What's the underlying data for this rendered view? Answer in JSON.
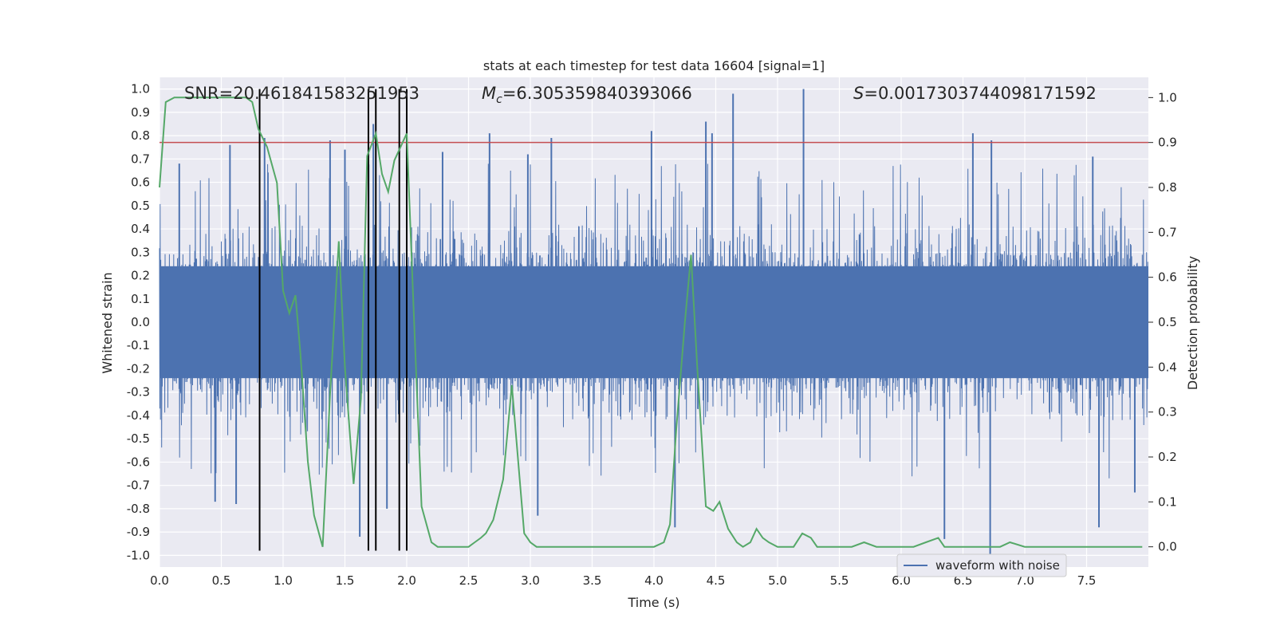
{
  "chart_data": {
    "type": "line",
    "title": "stats at each timestep for test data 16604 [signal=1]",
    "xlabel": "Time (s)",
    "ylabel": "Whitened strain",
    "ylabel_right": "Detection probability",
    "xlim": [
      0,
      8.0
    ],
    "ylim": [
      -1.05,
      1.05
    ],
    "ylim_right": [
      -0.045,
      1.045
    ],
    "xticks": [
      "0.0",
      "0.5",
      "1.0",
      "1.5",
      "2.0",
      "2.5",
      "3.0",
      "3.5",
      "4.0",
      "4.5",
      "5.0",
      "5.5",
      "6.0",
      "6.5",
      "7.0",
      "7.5"
    ],
    "yticks": [
      "1.0",
      "0.9",
      "0.8",
      "0.7",
      "0.6",
      "0.5",
      "0.4",
      "0.3",
      "0.2",
      "0.1",
      "0.0",
      "-0.1",
      "-0.2",
      "-0.3",
      "-0.4",
      "-0.5",
      "-0.6",
      "-0.7",
      "-0.8",
      "-0.9",
      "-1.0"
    ],
    "yticks_right": [
      "1.0",
      "0.9",
      "0.8",
      "0.7",
      "0.6",
      "0.5",
      "0.4",
      "0.3",
      "0.2",
      "0.1",
      "0.0"
    ],
    "annotations": {
      "snr": "SNR=20.461841583251953",
      "mc_symbol": "M",
      "mc_sub": "c",
      "mc_value": "=6.305359840393066",
      "s_symbol": "S",
      "s_value": "=0.0017303744098171592"
    },
    "legend": {
      "label": "waveform with noise",
      "position": "bottom-right"
    },
    "threshold": {
      "value": 0.9,
      "axis": "right",
      "color": "#c44e52"
    },
    "vlines_x": [
      0.81,
      1.69,
      1.75,
      1.94,
      2.0
    ],
    "series": [
      {
        "name": "waveform with noise",
        "color": "#4c72b0",
        "style": "dense noisy waveform",
        "envelope_upper": 0.55,
        "envelope_lower": -0.55,
        "peaks": [
          {
            "x": 0.16,
            "y": 0.68
          },
          {
            "x": 0.57,
            "y": 0.76
          },
          {
            "x": 0.85,
            "y": 0.79
          },
          {
            "x": 1.38,
            "y": 0.78
          },
          {
            "x": 1.5,
            "y": 0.74
          },
          {
            "x": 1.73,
            "y": 0.85
          },
          {
            "x": 2.0,
            "y": 0.9
          },
          {
            "x": 2.29,
            "y": 0.73
          },
          {
            "x": 2.67,
            "y": 0.81
          },
          {
            "x": 2.98,
            "y": 0.72
          },
          {
            "x": 3.17,
            "y": 0.79
          },
          {
            "x": 3.98,
            "y": 0.82
          },
          {
            "x": 4.42,
            "y": 0.86
          },
          {
            "x": 4.47,
            "y": 0.81
          },
          {
            "x": 4.64,
            "y": 0.98
          },
          {
            "x": 5.21,
            "y": 1.0
          },
          {
            "x": 6.58,
            "y": 0.81
          },
          {
            "x": 6.73,
            "y": 0.78
          },
          {
            "x": 7.55,
            "y": 0.71
          }
        ],
        "troughs": [
          {
            "x": 0.45,
            "y": -0.77
          },
          {
            "x": 0.62,
            "y": -0.78
          },
          {
            "x": 1.62,
            "y": -0.92
          },
          {
            "x": 1.84,
            "y": -0.8
          },
          {
            "x": 3.06,
            "y": -0.83
          },
          {
            "x": 4.17,
            "y": -0.88
          },
          {
            "x": 6.35,
            "y": -0.93
          },
          {
            "x": 6.72,
            "y": -1.0
          },
          {
            "x": 7.6,
            "y": -0.88
          },
          {
            "x": 7.89,
            "y": -0.73
          }
        ]
      },
      {
        "name": "",
        "axis": "right",
        "color": "#55a868",
        "x": [
          0.0,
          0.05,
          0.12,
          0.2,
          0.3,
          0.4,
          0.5,
          0.6,
          0.7,
          0.75,
          0.8,
          0.87,
          0.95,
          1.0,
          1.05,
          1.1,
          1.14,
          1.2,
          1.25,
          1.32,
          1.38,
          1.45,
          1.5,
          1.57,
          1.63,
          1.68,
          1.75,
          1.8,
          1.85,
          1.9,
          2.0,
          2.06,
          2.12,
          2.2,
          2.25,
          2.3,
          2.4,
          2.5,
          2.55,
          2.6,
          2.64,
          2.7,
          2.78,
          2.85,
          2.95,
          3.0,
          3.05,
          3.12,
          3.2,
          3.3,
          3.4,
          3.5,
          3.6,
          3.7,
          3.8,
          3.9,
          4.0,
          4.08,
          4.13,
          4.18,
          4.25,
          4.3,
          4.35,
          4.42,
          4.48,
          4.53,
          4.6,
          4.67,
          4.72,
          4.78,
          4.83,
          4.88,
          4.93,
          5.0,
          5.05,
          5.13,
          5.2,
          5.27,
          5.32,
          5.4,
          5.5,
          5.6,
          5.7,
          5.8,
          5.9,
          6.0,
          6.1,
          6.2,
          6.3,
          6.35,
          6.45,
          6.55,
          6.7,
          6.8,
          6.88,
          7.0,
          7.2,
          7.5,
          7.7,
          7.95
        ],
        "y": [
          0.8,
          0.99,
          1.0,
          1.0,
          1.0,
          1.0,
          1.0,
          1.0,
          1.0,
          0.99,
          0.93,
          0.89,
          0.81,
          0.57,
          0.52,
          0.56,
          0.43,
          0.19,
          0.07,
          0.0,
          0.34,
          0.68,
          0.4,
          0.14,
          0.33,
          0.87,
          0.92,
          0.83,
          0.79,
          0.86,
          0.92,
          0.5,
          0.09,
          0.01,
          0.0,
          0.0,
          0.0,
          0.0,
          0.01,
          0.02,
          0.03,
          0.06,
          0.15,
          0.36,
          0.03,
          0.01,
          0.0,
          0.0,
          0.0,
          0.0,
          0.0,
          0.0,
          0.0,
          0.0,
          0.0,
          0.0,
          0.0,
          0.01,
          0.05,
          0.26,
          0.5,
          0.65,
          0.4,
          0.09,
          0.08,
          0.1,
          0.04,
          0.01,
          0.0,
          0.01,
          0.04,
          0.02,
          0.01,
          0.0,
          0.0,
          0.0,
          0.03,
          0.02,
          0.0,
          0.0,
          0.0,
          0.0,
          0.01,
          0.0,
          0.0,
          0.0,
          0.0,
          0.01,
          0.02,
          0.0,
          0.0,
          0.0,
          0.0,
          0.0,
          0.01,
          0.0,
          0.0,
          0.0,
          0.0,
          0.0
        ]
      }
    ]
  }
}
